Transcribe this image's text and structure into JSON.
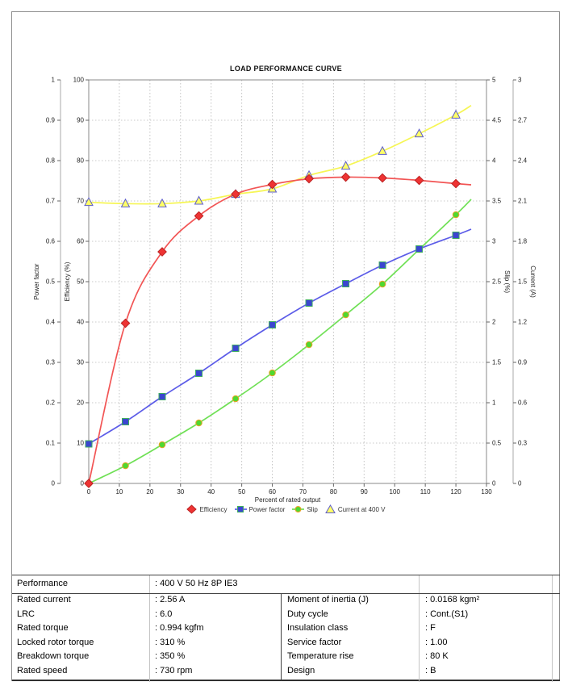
{
  "chart_data": {
    "type": "line",
    "title": "LOAD PERFORMANCE CURVE",
    "xlabel": "Percent of rated output",
    "x_axis": {
      "min": 0,
      "max": 130,
      "tick_step": 10
    },
    "grid": "dashed",
    "legend_position": "bottom-center",
    "x": [
      0,
      12,
      24,
      36,
      48,
      60,
      72,
      84,
      96,
      108,
      120
    ],
    "axes": [
      {
        "id": "power_factor",
        "title": "Power factor",
        "side": "left",
        "min": 0,
        "max": 1,
        "step": 0.1
      },
      {
        "id": "efficiency",
        "title": "Efficiency (%)",
        "side": "left",
        "min": 0,
        "max": 100,
        "step": 10
      },
      {
        "id": "slip",
        "title": "Slip (%)",
        "side": "right",
        "min": 0,
        "max": 5,
        "step": 0.5
      },
      {
        "id": "current",
        "title": "Current (A)",
        "side": "right",
        "min": 0,
        "max": 3,
        "step": 0.3
      }
    ],
    "series": [
      {
        "name": "Efficiency",
        "axis": "efficiency",
        "marker": "diamond",
        "line_color": "#f25555",
        "marker_fill": "#ee3333",
        "marker_edge": "#bb2222",
        "values": [
          0,
          39.7,
          57.4,
          66.3,
          71.7,
          74.1,
          75.5,
          75.9,
          75.7,
          75.1,
          74.3
        ],
        "line_end": {
          "x": 125,
          "y": 74.0
        }
      },
      {
        "name": "Power factor",
        "axis": "power_factor",
        "marker": "square",
        "line_color": "#5c5ce8",
        "marker_fill": "#3b46cf",
        "marker_edge": "#3fae5f",
        "values": [
          0.098,
          0.153,
          0.215,
          0.273,
          0.335,
          0.393,
          0.447,
          0.495,
          0.541,
          0.581,
          0.615
        ],
        "line_end": {
          "x": 125,
          "y": 0.63
        }
      },
      {
        "name": "Slip",
        "axis": "slip",
        "marker": "circle",
        "line_color": "#6fe055",
        "marker_fill": "#4fd830",
        "marker_edge": "#f0a028",
        "values": [
          0,
          0.22,
          0.48,
          0.75,
          1.05,
          1.37,
          1.72,
          2.09,
          2.47,
          2.9,
          3.33
        ],
        "line_end": {
          "x": 125,
          "y": 3.52
        }
      },
      {
        "name": "Current at 400 V",
        "axis": "current",
        "marker": "triangle",
        "line_color": "#f6f655",
        "marker_fill": "#ffff66",
        "marker_edge": "#5d5dcb",
        "values": [
          2.09,
          2.08,
          2.08,
          2.1,
          2.15,
          2.19,
          2.29,
          2.36,
          2.47,
          2.6,
          2.74
        ],
        "line_end": {
          "x": 125,
          "y": 2.81
        }
      }
    ]
  },
  "table": {
    "header": {
      "label": "Performance",
      "value": ": 400 V 50 Hz 8P IE3"
    },
    "rows": [
      {
        "l1": "Rated current",
        "v1": ": 2.56 A",
        "l2": "Moment of inertia (J)",
        "v2": ": 0.0168 kgm²"
      },
      {
        "l1": "LRC",
        "v1": ": 6.0",
        "l2": "Duty cycle",
        "v2": ": Cont.(S1)"
      },
      {
        "l1": "Rated torque",
        "v1": ": 0.994 kgfm",
        "l2": "Insulation class",
        "v2": ": F"
      },
      {
        "l1": "Locked rotor torque",
        "v1": ": 310 %",
        "l2": "Service factor",
        "v2": ": 1.00"
      },
      {
        "l1": "Breakdown torque",
        "v1": ": 350 %",
        "l2": "Temperature rise",
        "v2": ": 80 K"
      },
      {
        "l1": "Rated speed",
        "v1": ": 730 rpm",
        "l2": "Design",
        "v2": ": B"
      }
    ]
  }
}
